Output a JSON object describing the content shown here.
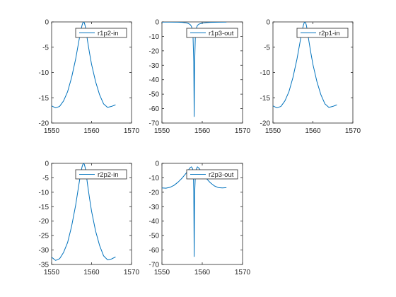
{
  "figure": {
    "background": "#ffffff",
    "axis_color": "#262626",
    "line_color": "#0072bd"
  },
  "chart_data": [
    {
      "type": "line",
      "legend": "top-right",
      "grid": false,
      "xlim": [
        1550,
        1570
      ],
      "ylim": [
        -20,
        0
      ],
      "xticks": [
        1550,
        1560,
        1570
      ],
      "yticks": [
        0,
        -5,
        -10,
        -15,
        -20
      ],
      "series": [
        {
          "name": "r1p2-in",
          "x": [
            1550.0,
            1551.0,
            1552.0,
            1553.0,
            1554.0,
            1555.0,
            1556.0,
            1556.5,
            1557.0,
            1557.3,
            1557.6,
            1557.8,
            1558.0,
            1558.2,
            1558.4,
            1558.7,
            1559.0,
            1559.5,
            1560.0,
            1561.0,
            1562.0,
            1563.0,
            1564.0,
            1565.0,
            1566.0
          ],
          "y": [
            -16.6,
            -17.0,
            -16.7,
            -15.6,
            -13.8,
            -11.0,
            -7.4,
            -5.2,
            -3.0,
            -1.8,
            -0.7,
            -0.2,
            0.0,
            -0.2,
            -0.8,
            -2.2,
            -3.8,
            -6.2,
            -8.4,
            -11.8,
            -14.4,
            -16.2,
            -16.9,
            -16.7,
            -16.4
          ]
        }
      ]
    },
    {
      "type": "line",
      "legend": "top-right",
      "grid": false,
      "xlim": [
        1550,
        1570
      ],
      "ylim": [
        -70,
        0
      ],
      "xticks": [
        1550,
        1560,
        1570
      ],
      "yticks": [
        0,
        -10,
        -20,
        -30,
        -40,
        -50,
        -60,
        -70
      ],
      "series": [
        {
          "name": "r1p3-out",
          "x": [
            1550.0,
            1552.0,
            1554.0,
            1555.0,
            1556.0,
            1556.5,
            1557.0,
            1557.3,
            1557.5,
            1557.7,
            1557.9,
            1558.0,
            1558.1,
            1558.3,
            1558.5,
            1558.8,
            1559.2,
            1560.0,
            1561.0,
            1562.0,
            1564.0,
            1566.0
          ],
          "y": [
            -0.1,
            -0.1,
            -0.2,
            -0.3,
            -0.6,
            -1.0,
            -1.8,
            -3.0,
            -4.8,
            -9.0,
            -28.0,
            -65.5,
            -30.0,
            -9.0,
            -4.8,
            -2.4,
            -1.5,
            -0.8,
            -0.5,
            -0.3,
            -0.2,
            -0.1
          ]
        }
      ]
    },
    {
      "type": "line",
      "legend": "top-right",
      "grid": false,
      "xlim": [
        1550,
        1570
      ],
      "ylim": [
        -20,
        0
      ],
      "xticks": [
        1550,
        1560,
        1570
      ],
      "yticks": [
        0,
        -5,
        -10,
        -15,
        -20
      ],
      "series": [
        {
          "name": "r2p1-in",
          "x": [
            1550.0,
            1551.0,
            1552.0,
            1553.0,
            1554.0,
            1555.0,
            1556.0,
            1556.5,
            1557.0,
            1557.3,
            1557.6,
            1557.8,
            1558.0,
            1558.2,
            1558.4,
            1558.7,
            1559.0,
            1559.5,
            1560.0,
            1561.0,
            1562.0,
            1563.0,
            1564.0,
            1565.0,
            1566.0
          ],
          "y": [
            -16.6,
            -17.0,
            -16.7,
            -15.6,
            -13.8,
            -11.0,
            -7.4,
            -5.2,
            -3.0,
            -1.8,
            -0.7,
            -0.2,
            0.0,
            -0.2,
            -0.8,
            -2.2,
            -3.8,
            -6.2,
            -8.4,
            -11.8,
            -14.4,
            -16.2,
            -16.9,
            -16.7,
            -16.4
          ]
        }
      ]
    },
    {
      "type": "line",
      "legend": "top-right",
      "grid": false,
      "xlim": [
        1550,
        1570
      ],
      "ylim": [
        -35,
        0
      ],
      "xticks": [
        1550,
        1560,
        1570
      ],
      "yticks": [
        0,
        -5,
        -10,
        -15,
        -20,
        -25,
        -30,
        -35
      ],
      "series": [
        {
          "name": "r2p2-in",
          "x": [
            1550.0,
            1551.0,
            1552.0,
            1553.0,
            1554.0,
            1555.0,
            1556.0,
            1556.5,
            1557.0,
            1557.3,
            1557.6,
            1557.8,
            1558.0,
            1558.2,
            1558.4,
            1558.7,
            1559.0,
            1559.5,
            1560.0,
            1561.0,
            1562.0,
            1563.0,
            1564.0,
            1565.0,
            1566.0
          ],
          "y": [
            -32.5,
            -33.6,
            -33.0,
            -30.8,
            -27.4,
            -21.8,
            -14.6,
            -10.2,
            -5.8,
            -3.4,
            -1.3,
            -0.4,
            0.0,
            -0.4,
            -1.5,
            -4.2,
            -7.4,
            -12.2,
            -16.6,
            -23.4,
            -28.4,
            -32.0,
            -33.4,
            -33.1,
            -32.4
          ]
        }
      ]
    },
    {
      "type": "line",
      "legend": "top-right",
      "grid": false,
      "xlim": [
        1550,
        1570
      ],
      "ylim": [
        -70,
        0
      ],
      "xticks": [
        1550,
        1560,
        1570
      ],
      "yticks": [
        0,
        -10,
        -20,
        -30,
        -40,
        -50,
        -60,
        -70
      ],
      "series": [
        {
          "name": "r2p3-out",
          "x": [
            1550.0,
            1551.0,
            1552.0,
            1553.0,
            1554.0,
            1555.0,
            1556.0,
            1556.5,
            1557.0,
            1557.3,
            1557.6,
            1557.8,
            1557.9,
            1558.0,
            1558.1,
            1558.3,
            1558.5,
            1558.8,
            1559.2,
            1560.0,
            1561.0,
            1562.0,
            1563.0,
            1564.0,
            1565.0,
            1566.0
          ],
          "y": [
            -17.0,
            -17.2,
            -16.6,
            -15.2,
            -13.0,
            -10.2,
            -6.8,
            -4.8,
            -3.0,
            -2.4,
            -3.6,
            -8.0,
            -20.0,
            -64.5,
            -22.0,
            -8.0,
            -4.2,
            -2.4,
            -3.4,
            -6.4,
            -10.4,
            -13.4,
            -15.6,
            -16.8,
            -17.0,
            -16.8
          ]
        }
      ]
    }
  ]
}
